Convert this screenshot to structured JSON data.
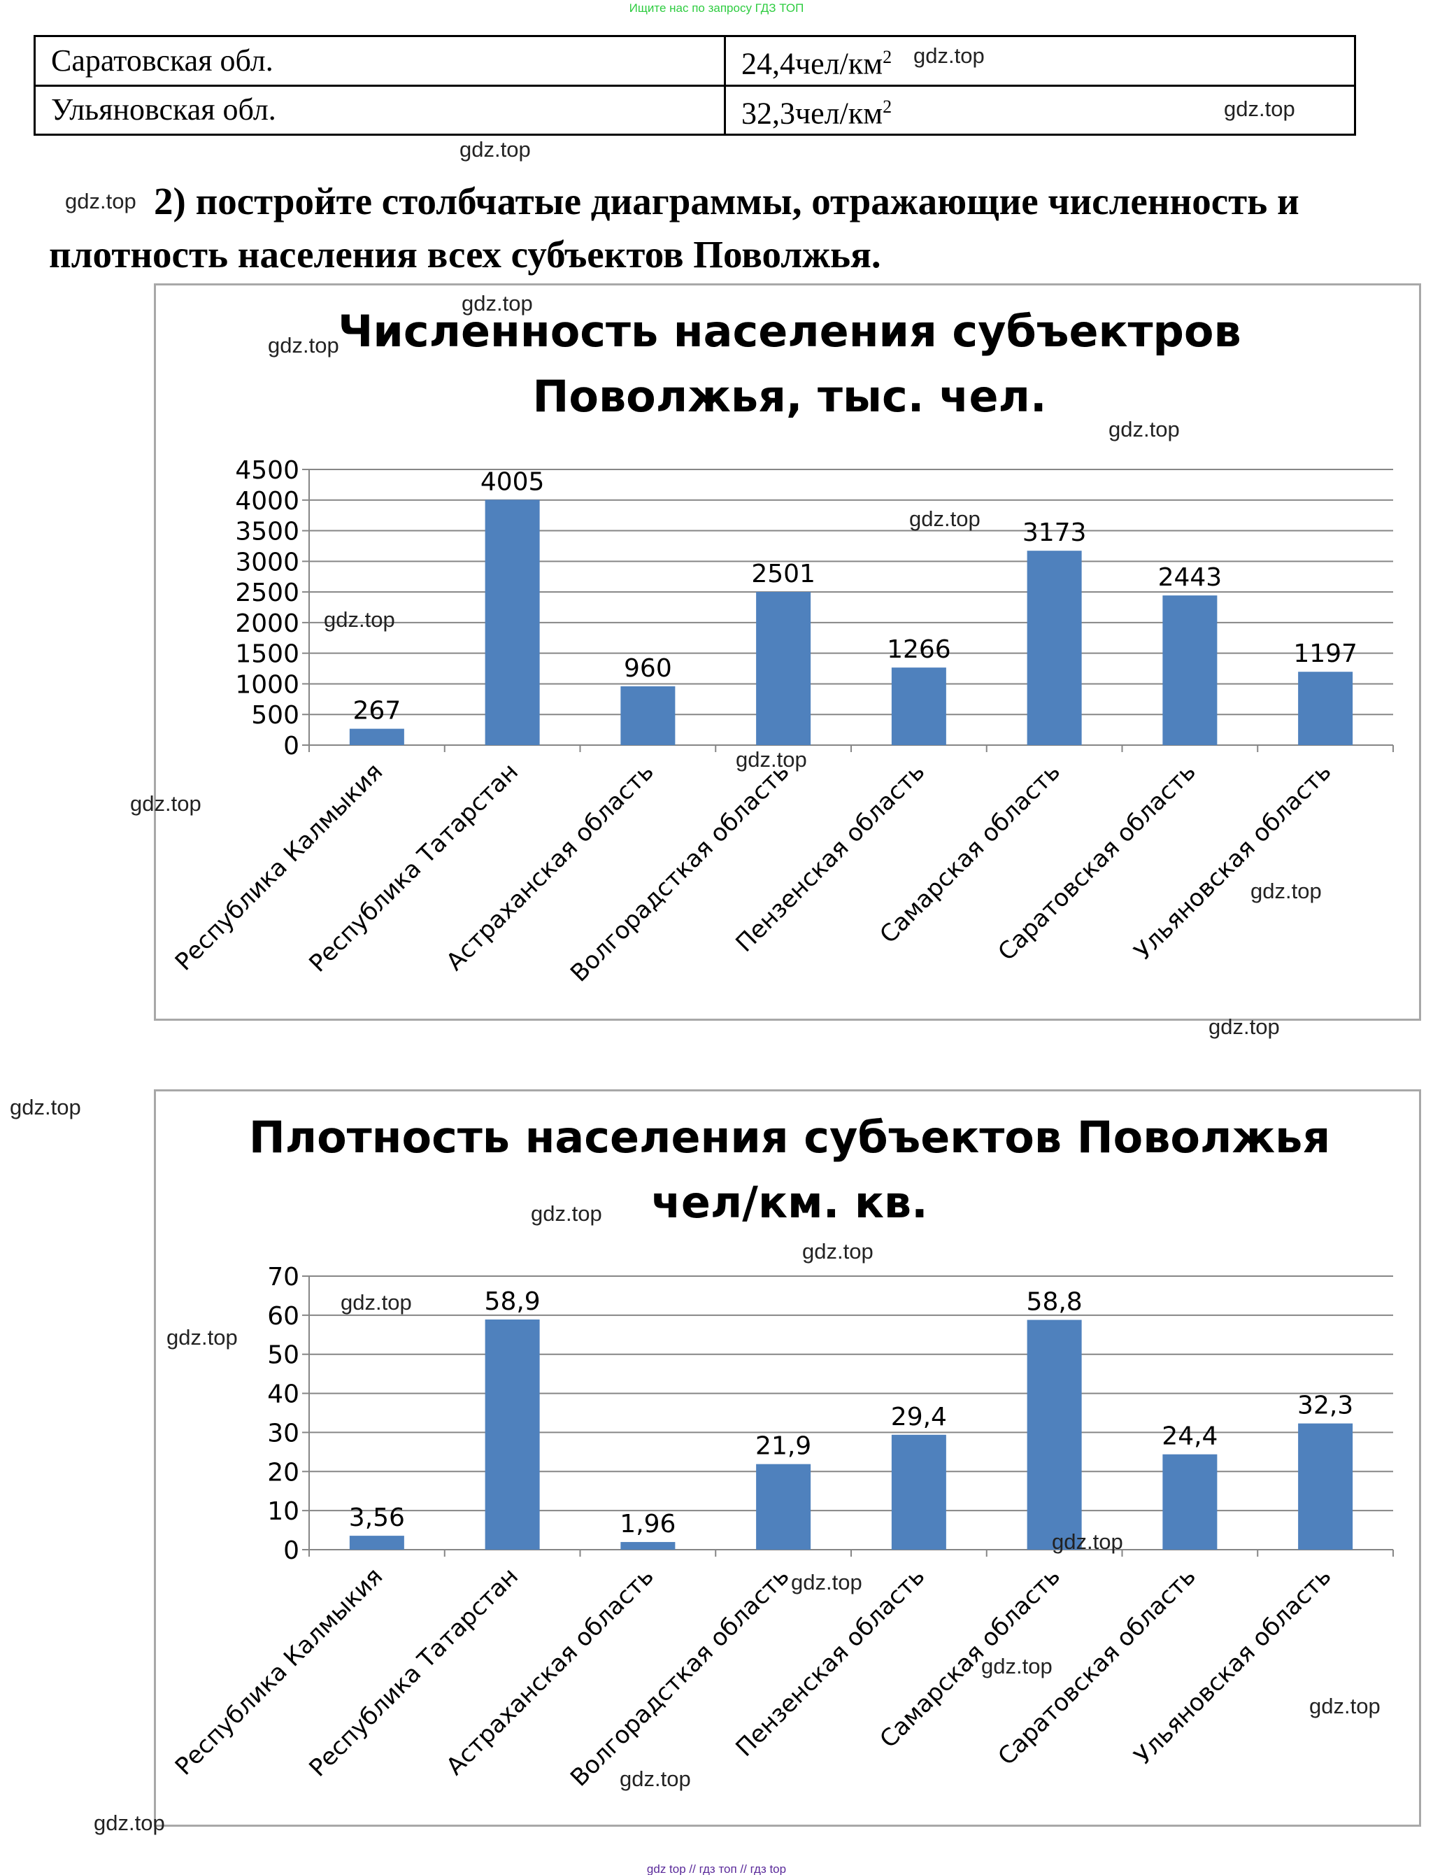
{
  "header_note": "Ищите нас по запросу ГДЗ ТОП",
  "footer_note": "gdz top // гдз топ // гдз top",
  "table": {
    "rows": [
      {
        "region": "Саратовская обл.",
        "value": "24,4чел/км",
        "sup": "2"
      },
      {
        "region": "Ульяновская обл.",
        "value": "32,3чел/км",
        "sup": "2"
      }
    ]
  },
  "task": "2) постройте столбчатые диаграммы, отражающие численность и плотность населения всех субъектов Поволжья.",
  "watermark": "gdz.top",
  "chart_data": [
    {
      "type": "bar",
      "title": "Численность населения субъектров Поволжья, тыс. чел.",
      "categories": [
        "Республика Калмыкия",
        "Республика Татарстан",
        "Астраханская область",
        "Волгорадсткая область",
        "Пензенская область",
        "Самарская область",
        "Саратовская область",
        "Ульяновская область"
      ],
      "values": [
        267,
        4005,
        960,
        2501,
        1266,
        3173,
        2443,
        1197
      ],
      "labels": [
        "267",
        "4005",
        "960",
        "2501",
        "1266",
        "3173",
        "2443",
        "1197"
      ],
      "ylim": [
        0,
        4500
      ],
      "yticks": [
        0,
        500,
        1000,
        1500,
        2000,
        2500,
        3000,
        3500,
        4000,
        4500
      ],
      "grid": true,
      "color": "#4f81bd",
      "xlabel": "",
      "ylabel": ""
    },
    {
      "type": "bar",
      "title": "Плотность населения субъектов Поволжья чел/км. кв.",
      "categories": [
        "Республика Калмыкия",
        "Республика Татарстан",
        "Астраханская область",
        "Волгорадсткая область",
        "Пензенская область",
        "Самарская область",
        "Саратовская область",
        "Ульяновская область"
      ],
      "values": [
        3.56,
        58.9,
        1.96,
        21.9,
        29.4,
        58.8,
        24.4,
        32.3
      ],
      "labels": [
        "3,56",
        "58,9",
        "1,96",
        "21,9",
        "29,4",
        "58,8",
        "24,4",
        "32,3"
      ],
      "ylim": [
        0,
        70
      ],
      "yticks": [
        0,
        10,
        20,
        30,
        40,
        50,
        60,
        70
      ],
      "grid": true,
      "color": "#4f81bd",
      "xlabel": "",
      "ylabel": ""
    }
  ]
}
